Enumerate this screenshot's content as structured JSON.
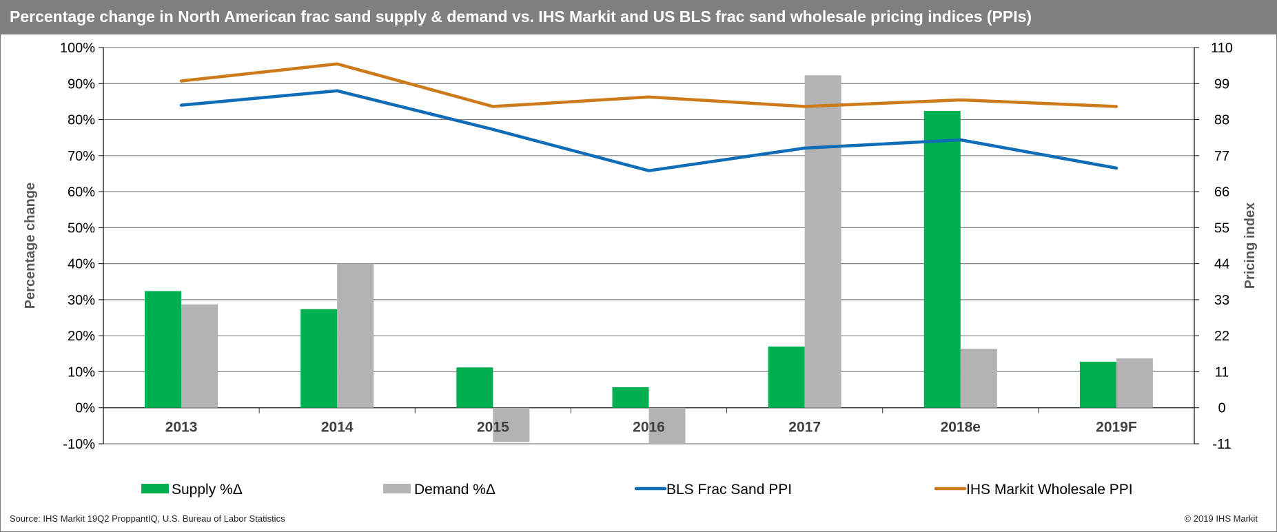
{
  "title": "Percentage change in North American frac sand supply & demand vs. IHS Markit and US BLS frac sand wholesale pricing indices (PPIs)",
  "source": "Source: IHS Markit 19Q2 ProppantIQ, U.S. Bureau of Labor Statistics",
  "copyright": "© 2019 IHS Markit",
  "colors": {
    "supply": "#00b050",
    "demand": "#b3b3b6",
    "bls": "#0f6db7",
    "ihs": "#cc7a1a",
    "grid": "#808080",
    "title_bg": "#7f7f7f"
  },
  "chart_data": {
    "type": "bar",
    "title": "Percentage change in North American frac sand supply & demand vs. IHS Markit and US BLS frac sand wholesale pricing indices (PPIs)",
    "categories": [
      "2013",
      "2014",
      "2015",
      "2016",
      "2017",
      "2018e",
      "2019F"
    ],
    "ylabel": "Percentage change",
    "y2label": "Pricing index",
    "ylim": [
      -10,
      100
    ],
    "y_ticks": [
      "100%",
      "90%",
      "80%",
      "70%",
      "60%",
      "50%",
      "40%",
      "30%",
      "20%",
      "10%",
      "0%",
      "-10%"
    ],
    "y2lim": [
      -11,
      110
    ],
    "y2_ticks": [
      "110",
      "99",
      "88",
      "77",
      "66",
      "55",
      "44",
      "33",
      "22",
      "11",
      "0",
      "-11"
    ],
    "grid": true,
    "legend_position": "bottom",
    "series": [
      {
        "name": "Supply %Δ",
        "type": "bar",
        "axis": "left",
        "values": [
          32.4,
          27.4,
          11.2,
          5.7,
          17.0,
          82.4,
          12.8
        ]
      },
      {
        "name": "Demand %Δ",
        "type": "bar",
        "axis": "left",
        "values": [
          28.7,
          40.0,
          -9.5,
          -10.0,
          92.3,
          16.4,
          13.7
        ]
      },
      {
        "name": "BLS Frac Sand PPI",
        "type": "line",
        "axis": "right",
        "values": [
          92.4,
          96.8,
          85.0,
          72.4,
          79.3,
          81.8,
          73.2
        ]
      },
      {
        "name": "IHS Markit Wholesale PPI",
        "type": "line",
        "axis": "right",
        "values": [
          99.8,
          105.0,
          92.0,
          94.9,
          92.0,
          94.0,
          92.0
        ]
      }
    ]
  }
}
